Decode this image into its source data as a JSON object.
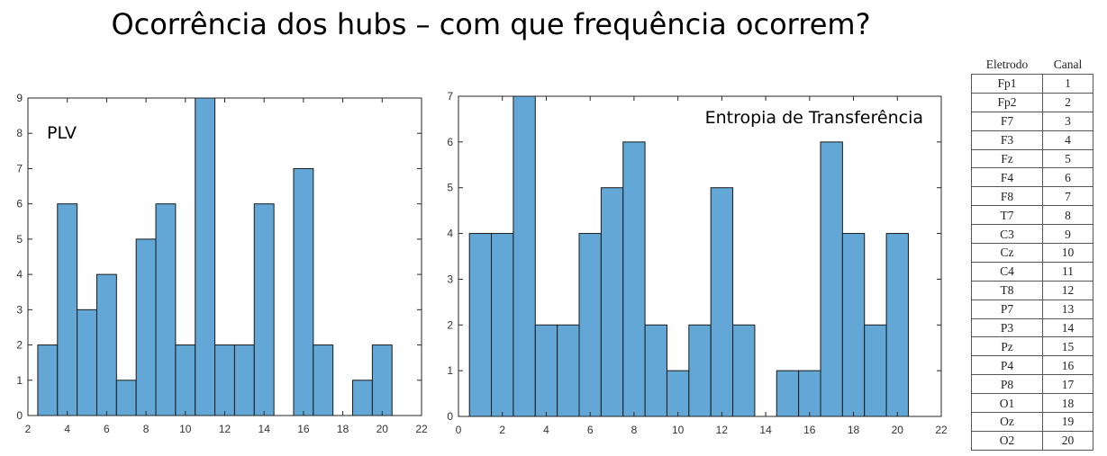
{
  "title": "Ocorrência dos hubs – com que frequência ocorrem?",
  "chart_data": [
    {
      "type": "bar",
      "label": "PLV",
      "bin_width": 1,
      "x": [
        3,
        4,
        5,
        6,
        7,
        8,
        9,
        10,
        11,
        12,
        13,
        14,
        15,
        16,
        17,
        18,
        19,
        20
      ],
      "values": [
        2,
        6,
        3,
        4,
        1,
        5,
        6,
        2,
        9,
        2,
        2,
        6,
        0,
        7,
        2,
        0,
        1,
        2
      ],
      "xlim": [
        2,
        22
      ],
      "ylim": [
        0,
        9
      ],
      "xticks": [
        2,
        4,
        6,
        8,
        10,
        12,
        14,
        16,
        18,
        20,
        22
      ],
      "yticks": [
        0,
        1,
        2,
        3,
        4,
        5,
        6,
        7,
        8,
        9
      ],
      "color": "#62a7d6",
      "grid": false
    },
    {
      "type": "bar",
      "label": "Entropia de Transferência",
      "bin_width": 1,
      "x": [
        1,
        2,
        3,
        4,
        5,
        6,
        7,
        8,
        9,
        10,
        11,
        12,
        13,
        14,
        15,
        16,
        17,
        18,
        19,
        20
      ],
      "values": [
        4,
        4,
        7,
        2,
        2,
        4,
        5,
        6,
        2,
        1,
        2,
        5,
        2,
        0,
        1,
        1,
        6,
        4,
        2,
        4
      ],
      "xlim": [
        0,
        22
      ],
      "ylim": [
        0,
        7
      ],
      "xticks": [
        0,
        2,
        4,
        6,
        8,
        10,
        12,
        14,
        16,
        18,
        20,
        22
      ],
      "yticks": [
        0,
        1,
        2,
        3,
        4,
        5,
        6,
        7
      ],
      "color": "#62a7d6",
      "grid": false
    }
  ],
  "electrode_table": {
    "headers": [
      "Eletrodo",
      "Canal"
    ],
    "rows": [
      [
        "Fp1",
        "1"
      ],
      [
        "Fp2",
        "2"
      ],
      [
        "F7",
        "3"
      ],
      [
        "F3",
        "4"
      ],
      [
        "Fz",
        "5"
      ],
      [
        "F4",
        "6"
      ],
      [
        "F8",
        "7"
      ],
      [
        "T7",
        "8"
      ],
      [
        "C3",
        "9"
      ],
      [
        "Cz",
        "10"
      ],
      [
        "C4",
        "11"
      ],
      [
        "T8",
        "12"
      ],
      [
        "P7",
        "13"
      ],
      [
        "P3",
        "14"
      ],
      [
        "Pz",
        "15"
      ],
      [
        "P4",
        "16"
      ],
      [
        "P8",
        "17"
      ],
      [
        "O1",
        "18"
      ],
      [
        "Oz",
        "19"
      ],
      [
        "O2",
        "20"
      ]
    ]
  }
}
